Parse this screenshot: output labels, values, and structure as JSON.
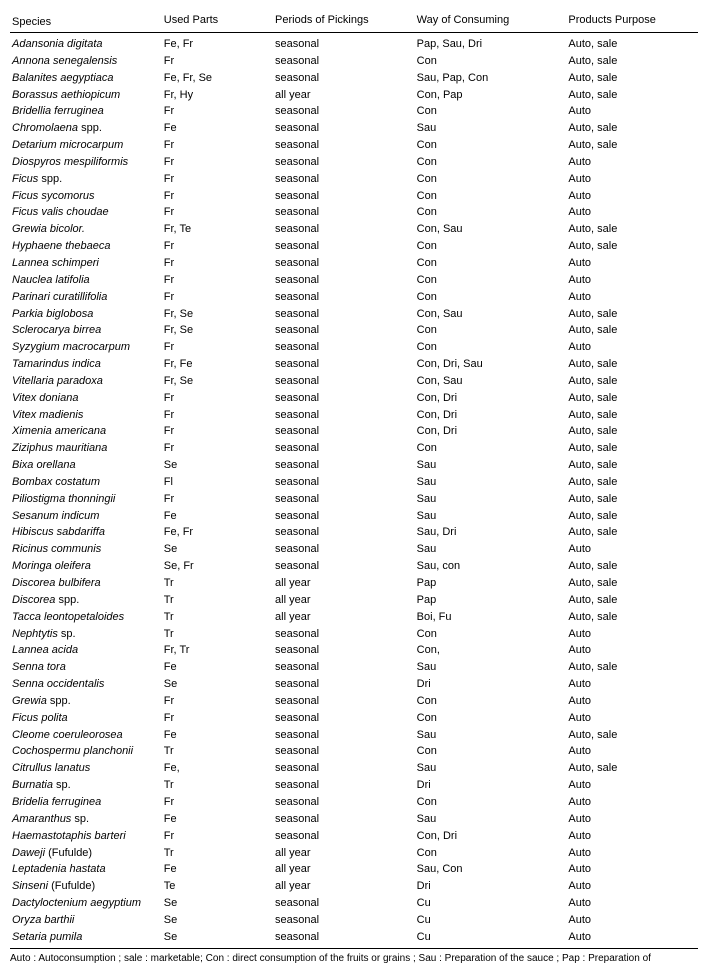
{
  "headers": {
    "species": "Species",
    "parts": "Used Parts",
    "periods": "Periods of Pickings",
    "consuming": "Way of Consuming",
    "purpose": "Products Purpose"
  },
  "rows": [
    {
      "s": "Adansonia digitata",
      "p": "Fe, Fr",
      "pe": "seasonal",
      "c": "Pap, Sau, Dri",
      "pu": "Auto, sale"
    },
    {
      "s": "Annona senegalensis",
      "p": "Fr",
      "pe": "seasonal",
      "c": "Con",
      "pu": "Auto, sale"
    },
    {
      "s": "Balanites aegyptiaca",
      "p": "Fe, Fr, Se",
      "pe": "seasonal",
      "c": "Sau, Pap, Con",
      "pu": "Auto, sale"
    },
    {
      "s": "Borassus aethiopicum",
      "p": "Fr, Hy",
      "pe": "all year",
      "c": "Con, Pap",
      "pu": "Auto, sale"
    },
    {
      "s": "Bridellia ferruginea",
      "p": "Fr",
      "pe": "seasonal",
      "c": "Con",
      "pu": "Auto"
    },
    {
      "s": "Chromolaena",
      "suffix": " spp.",
      "p": "Fe",
      "pe": "seasonal",
      "c": "Sau",
      "pu": "Auto, sale"
    },
    {
      "s": "Detarium microcarpum",
      "p": "Fr",
      "pe": "seasonal",
      "c": "Con",
      "pu": "Auto, sale"
    },
    {
      "s": "Diospyros mespiliformis",
      "p": "Fr",
      "pe": "seasonal",
      "c": "Con",
      "pu": "Auto"
    },
    {
      "s": "Ficus",
      "suffix": " spp.",
      "p": "Fr",
      "pe": "seasonal",
      "c": "Con",
      "pu": "Auto"
    },
    {
      "s": "Ficus sycomorus",
      "p": "Fr",
      "pe": "seasonal",
      "c": "Con",
      "pu": "Auto"
    },
    {
      "s": "Ficus valis choudae",
      "p": "Fr",
      "pe": "seasonal",
      "c": "Con",
      "pu": "Auto"
    },
    {
      "s": "Grewia bicolor.",
      "p": "Fr, Te",
      "pe": "seasonal",
      "c": "Con, Sau",
      "pu": "Auto, sale"
    },
    {
      "s": "Hyphaene thebaeca",
      "p": "Fr",
      "pe": "seasonal",
      "c": "Con",
      "pu": "Auto, sale"
    },
    {
      "s": "Lannea schimperi",
      "p": "Fr",
      "pe": "seasonal",
      "c": "Con",
      "pu": "Auto"
    },
    {
      "s": "Nauclea latifolia",
      "p": "Fr",
      "pe": "seasonal",
      "c": "Con",
      "pu": "Auto"
    },
    {
      "s": "Parinari curatillifolia",
      "p": "Fr",
      "pe": "seasonal",
      "c": "Con",
      "pu": "Auto"
    },
    {
      "s": "Parkia biglobosa",
      "p": "Fr, Se",
      "pe": "seasonal",
      "c": "Con, Sau",
      "pu": "Auto, sale"
    },
    {
      "s": "Sclerocarya birrea",
      "p": "Fr, Se",
      "pe": "seasonal",
      "c": "Con",
      "pu": "Auto, sale"
    },
    {
      "s": "Syzygium macrocarpum",
      "p": "Fr",
      "pe": "seasonal",
      "c": "Con",
      "pu": "Auto"
    },
    {
      "s": "Tamarindus indica",
      "p": "Fr, Fe",
      "pe": "seasonal",
      "c": "Con, Dri, Sau",
      "pu": "Auto, sale"
    },
    {
      "s": "Vitellaria paradoxa",
      "p": "Fr, Se",
      "pe": "seasonal",
      "c": "Con, Sau",
      "pu": "Auto, sale"
    },
    {
      "s": "Vitex doniana",
      "p": "Fr",
      "pe": "seasonal",
      "c": "Con, Dri",
      "pu": "Auto, sale"
    },
    {
      "s": "Vitex madienis",
      "p": "Fr",
      "pe": "seasonal",
      "c": "Con, Dri",
      "pu": "Auto, sale"
    },
    {
      "s": "Ximenia americana",
      "p": "Fr",
      "pe": "seasonal",
      "c": "Con, Dri",
      "pu": "Auto, sale"
    },
    {
      "s": "Ziziphus mauritiana",
      "p": "Fr",
      "pe": "seasonal",
      "c": "Con",
      "pu": "Auto, sale"
    },
    {
      "s": "Bixa orellana",
      "p": "Se",
      "pe": "seasonal",
      "c": "Sau",
      "pu": "Auto, sale"
    },
    {
      "s": "Bombax costatum",
      "p": "Fl",
      "pe": "seasonal",
      "c": "Sau",
      "pu": "Auto, sale"
    },
    {
      "s": "Piliostigma thonningii",
      "p": "Fr",
      "pe": "seasonal",
      "c": "Sau",
      "pu": "Auto, sale"
    },
    {
      "s": "Sesanum indicum",
      "p": "Fe",
      "pe": "seasonal",
      "c": "Sau",
      "pu": "Auto, sale"
    },
    {
      "s": "Hibiscus sabdariffa",
      "p": "Fe, Fr",
      "pe": "seasonal",
      "c": "Sau, Dri",
      "pu": "Auto, sale"
    },
    {
      "s": "Ricinus communis",
      "p": "Se",
      "pe": "seasonal",
      "c": "Sau",
      "pu": "Auto"
    },
    {
      "s": "Moringa oleifera",
      "p": "Se, Fr",
      "pe": "seasonal",
      "c": "Sau, con",
      "pu": "Auto, sale"
    },
    {
      "s": "Discorea bulbifera",
      "p": "Tr",
      "pe": "all year",
      "c": "Pap",
      "pu": "Auto, sale"
    },
    {
      "s": "Discorea",
      "suffix": " spp.",
      "p": "Tr",
      "pe": "all year",
      "c": "Pap",
      "pu": "Auto, sale"
    },
    {
      "s": "Tacca leontopetaloides",
      "p": "Tr",
      "pe": "all year",
      "c": "Boi, Fu",
      "pu": "Auto, sale"
    },
    {
      "s": "Nephtytis",
      "suffix": " sp.",
      "p": "Tr",
      "pe": "seasonal",
      "c": "Con",
      "pu": "Auto"
    },
    {
      "s": "Lannea acida",
      "p": "Fr, Tr",
      "pe": "seasonal",
      "c": "Con,",
      "pu": "Auto"
    },
    {
      "s": "Senna tora",
      "p": "Fe",
      "pe": "seasonal",
      "c": "Sau",
      "pu": "Auto, sale"
    },
    {
      "s": "Senna occidentalis",
      "p": "Se",
      "pe": "seasonal",
      "c": "Dri",
      "pu": "Auto"
    },
    {
      "s": "Grewia",
      "suffix": " spp.",
      "p": "Fr",
      "pe": "seasonal",
      "c": "Con",
      "pu": "Auto"
    },
    {
      "s": "Ficus polita",
      "p": "Fr",
      "pe": "seasonal",
      "c": "Con",
      "pu": "Auto"
    },
    {
      "s": "Cleome coeruleorosea",
      "p": "Fe",
      "pe": "seasonal",
      "c": "Sau",
      "pu": "Auto, sale"
    },
    {
      "s": "Cochospermu planchonii",
      "p": "Tr",
      "pe": "seasonal",
      "c": "Con",
      "pu": "Auto"
    },
    {
      "s": "Citrullus lanatus",
      "p": "Fe,",
      "pe": "seasonal",
      "c": "Sau",
      "pu": "Auto, sale"
    },
    {
      "s": "Burnatia",
      "suffix": " sp.",
      "p": "Tr",
      "pe": "seasonal",
      "c": "Dri",
      "pu": "Auto"
    },
    {
      "s": "Bridelia ferruginea",
      "p": "Fr",
      "pe": "seasonal",
      "c": "Con",
      "pu": "Auto"
    },
    {
      "s": "Amaranthus",
      "suffix": " sp.",
      "p": "Fe",
      "pe": "seasonal",
      "c": "Sau",
      "pu": "Auto"
    },
    {
      "s": "Haemastotaphis barteri",
      "p": "Fr",
      "pe": "seasonal",
      "c": "Con, Dri",
      "pu": "Auto"
    },
    {
      "s": "Daweji",
      "suffix": " (Fufulde)",
      "p": "Tr",
      "pe": "all year",
      "c": "Con",
      "pu": "Auto"
    },
    {
      "s": "Leptadenia hastata",
      "p": "Fe",
      "pe": "all year",
      "c": "Sau, Con",
      "pu": "Auto"
    },
    {
      "s": "Sinseni",
      "suffix": " (Fufulde)",
      "p": "Te",
      "pe": "all year",
      "c": "Dri",
      "pu": "Auto"
    },
    {
      "s": "Dactyloctenium aegyptium",
      "p": "Se",
      "pe": "seasonal",
      "c": "Cu",
      "pu": "Auto"
    },
    {
      "s": "Oryza barthii",
      "p": "Se",
      "pe": "seasonal",
      "c": "Cu",
      "pu": "Auto"
    },
    {
      "s": "Setaria pumila",
      "p": "Se",
      "pe": "seasonal",
      "c": "Cu",
      "pu": "Auto"
    }
  ],
  "footer": "Auto : Autoconsumption ; sale : marketable; Con : direct consumption of the fruits or grains ; Sau : Preparation of the sauce ; Pap : Preparation of"
}
